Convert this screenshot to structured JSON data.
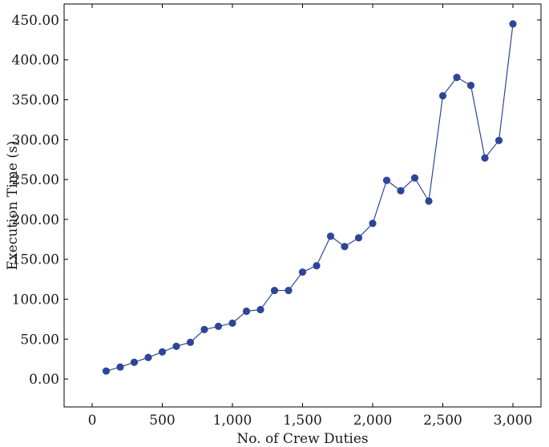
{
  "chart_data": {
    "type": "line",
    "title": "",
    "xlabel": "No. of Crew Duties",
    "ylabel": "Execution Time (s)",
    "xlim": [
      -200,
      3200
    ],
    "ylim": [
      -35,
      470
    ],
    "x_ticks": [
      0,
      500,
      1000,
      1500,
      2000,
      2500,
      3000
    ],
    "x_tick_labels": [
      "0",
      "500",
      "1,000",
      "1,500",
      "2,000",
      "2,500",
      "3,000"
    ],
    "y_ticks": [
      0,
      50,
      100,
      150,
      200,
      250,
      300,
      350,
      400,
      450
    ],
    "y_tick_labels": [
      "0.00",
      "50.00",
      "100.00",
      "150.00",
      "200.00",
      "250.00",
      "300.00",
      "350.00",
      "400.00",
      "450.00"
    ],
    "grid": false,
    "legend": "none",
    "series": [
      {
        "color": "#2f4598",
        "marker": "circle",
        "x": [
          100,
          200,
          300,
          400,
          500,
          600,
          700,
          800,
          900,
          1000,
          1100,
          1200,
          1300,
          1400,
          1500,
          1600,
          1700,
          1800,
          1900,
          2000,
          2100,
          2200,
          2300,
          2400,
          2500,
          2600,
          2700,
          2800,
          2900,
          3000
        ],
        "y": [
          10,
          15,
          21,
          27,
          34,
          41,
          46,
          62,
          66,
          70,
          85,
          87,
          111,
          111,
          134,
          142,
          179,
          166,
          177,
          195,
          249,
          236,
          252,
          223,
          355,
          378,
          368,
          277,
          299,
          445
        ]
      }
    ]
  }
}
